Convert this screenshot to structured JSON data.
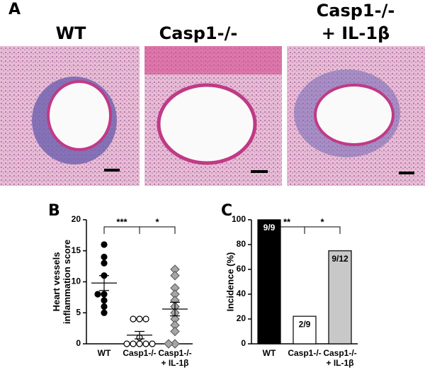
{
  "panel_a": {
    "label": "A",
    "titles": [
      [
        "WT"
      ],
      [
        "Casp1-/-"
      ],
      [
        "Casp1-/-",
        "+ IL-1β"
      ]
    ]
  },
  "chart_data": [
    {
      "type": "dot",
      "panel_label": "B",
      "ylabel": [
        "Heart vessels",
        "inflammation score"
      ],
      "categories": [
        [
          "WT"
        ],
        [
          "Casp1-/-"
        ],
        [
          "Casp1-/-",
          "+ IL-1β"
        ]
      ],
      "groups": [
        {
          "values": [
            16,
            14,
            13,
            11,
            8,
            8,
            7,
            6,
            5
          ],
          "mean": 9.8,
          "sem": 1.2,
          "marker": "circle",
          "color": "#000000"
        },
        {
          "values": [
            4,
            4,
            4,
            1,
            0,
            0,
            0,
            0,
            0
          ],
          "mean": 1.4,
          "sem": 0.6,
          "marker": "open-circle",
          "color": "#ffffff"
        },
        {
          "values": [
            12,
            11,
            9,
            8,
            7,
            6,
            5,
            4,
            3,
            2,
            0,
            0
          ],
          "mean": 5.6,
          "sem": 1.1,
          "marker": "diamond",
          "color": "#a6a6a6"
        }
      ],
      "annotations": [
        "***",
        "*"
      ],
      "ylim": [
        0,
        20
      ],
      "yticks": [
        0,
        5,
        10,
        15,
        20
      ]
    },
    {
      "type": "bar",
      "panel_label": "C",
      "ylabel": [
        "Incidence (%)"
      ],
      "categories": [
        [
          "WT"
        ],
        [
          "Casp1-/-"
        ],
        [
          "Casp1-/-",
          "+ IL-1β"
        ]
      ],
      "values": [
        100,
        22.2,
        75
      ],
      "value_labels": [
        "9/9",
        "2/9",
        "9/12"
      ],
      "colors": [
        "#000000",
        "#ffffff",
        "#c8c8c8"
      ],
      "label_colors": [
        "#ffffff",
        "#000000",
        "#000000"
      ],
      "annotations": [
        "**",
        "*"
      ],
      "ylim": [
        0,
        100
      ],
      "yticks": [
        0,
        20,
        40,
        60,
        80,
        100
      ]
    }
  ]
}
